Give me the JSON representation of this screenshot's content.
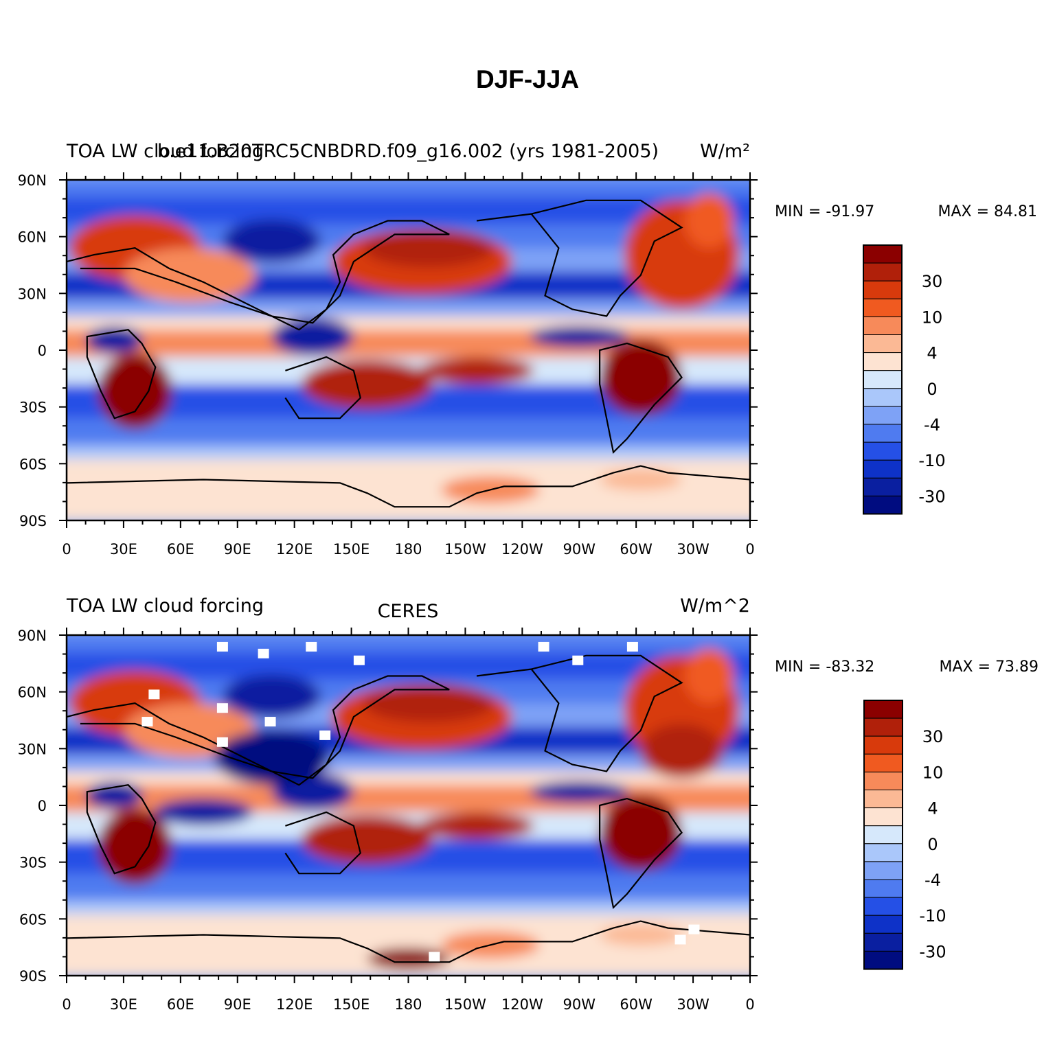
{
  "figure": {
    "title": "DJF-JJA"
  },
  "panels": [
    {
      "left_title": "TOA LW cloud forcing",
      "center_title": "b.e11.B20TRC5CNBDRD.f09_g16.002 (yrs 1981-2005)",
      "right_title": "W/m²",
      "min_label": "MIN = -91.97",
      "max_label": "MAX = 84.81"
    },
    {
      "left_title": "TOA LW cloud forcing",
      "center_title": "CERES",
      "right_title": "W/m^2",
      "min_label": "MIN = -83.32",
      "max_label": "MAX = 73.89"
    }
  ],
  "axes": {
    "x_ticks": [
      "0",
      "30E",
      "60E",
      "90E",
      "120E",
      "150E",
      "180",
      "150W",
      "120W",
      "90W",
      "60W",
      "30W",
      "0"
    ],
    "y_ticks": [
      "90N",
      "60N",
      "30N",
      "0",
      "30S",
      "60S",
      "90S"
    ]
  },
  "colorbar": {
    "labels": [
      "30",
      "10",
      "4",
      "0",
      "-4",
      "-10",
      "-30"
    ],
    "colors": [
      "#8b0000",
      "#b0200a",
      "#d83a0c",
      "#f05a20",
      "#f78a5a",
      "#fbb995",
      "#fde3d2",
      "#d6e8fb",
      "#aac7fa",
      "#7ea2f6",
      "#4f7bf0",
      "#2550e6",
      "#0e32c8",
      "#0a1fa0",
      "#000c80"
    ]
  },
  "colors": {
    "warm": "#d83a0c",
    "cool": "#2550e6",
    "coast": "#000000"
  }
}
